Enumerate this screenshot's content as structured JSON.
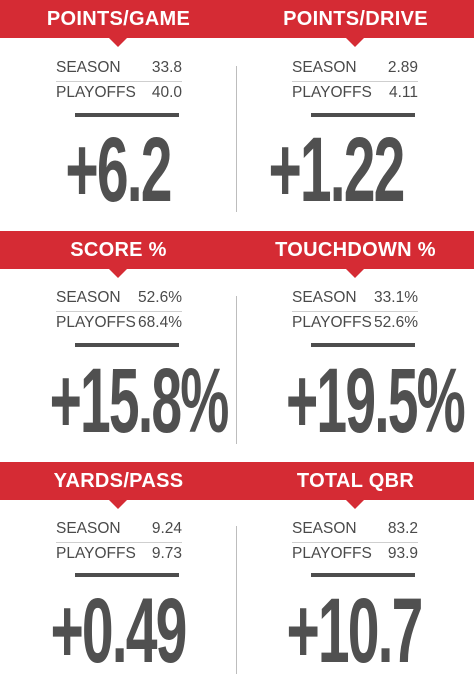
{
  "panels": [
    {
      "title": "POINTS/GAME",
      "season_label": "SEASON",
      "season_value": "33.8",
      "playoffs_label": "PLAYOFFS",
      "playoffs_value": "40.0",
      "delta": "+6.2"
    },
    {
      "title": "POINTS/DRIVE",
      "season_label": "SEASON",
      "season_value": "2.89",
      "playoffs_label": "PLAYOFFS",
      "playoffs_value": "4.11",
      "delta": "+1.22"
    },
    {
      "title": "SCORE %",
      "season_label": "SEASON",
      "season_value": "52.6%",
      "playoffs_label": "PLAYOFFS",
      "playoffs_value": "68.4%",
      "delta": "+15.8%"
    },
    {
      "title": "TOUCHDOWN %",
      "season_label": "SEASON",
      "season_value": "33.1%",
      "playoffs_label": "PLAYOFFS",
      "playoffs_value": "52.6%",
      "delta": "+19.5%"
    },
    {
      "title": "YARDS/PASS",
      "season_label": "SEASON",
      "season_value": "9.24",
      "playoffs_label": "PLAYOFFS",
      "playoffs_value": "9.73",
      "delta": "+0.49"
    },
    {
      "title": "TOTAL QBR",
      "season_label": "SEASON",
      "season_value": "83.2",
      "playoffs_label": "PLAYOFFS",
      "playoffs_value": "93.9",
      "delta": "+10.7"
    }
  ],
  "colors": {
    "banner": "#d52b34",
    "text": "#4a4a4a",
    "big_number": "#505050"
  }
}
